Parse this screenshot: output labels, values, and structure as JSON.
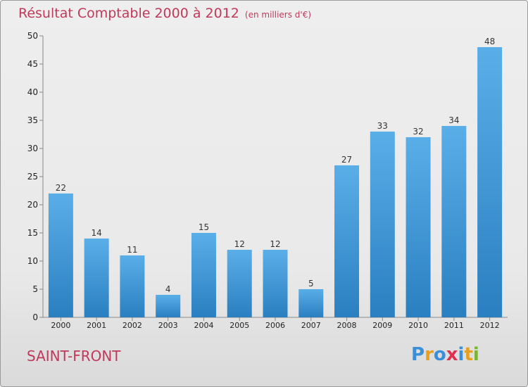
{
  "title": "Résultat Comptable 2000 à 2012",
  "unit": "(en milliers d'€)",
  "commune": "SAINT-FRONT",
  "logo": [
    "P",
    "r",
    "o",
    "x",
    "i",
    "t",
    "i"
  ],
  "logo_colors": [
    "#3a8fd8",
    "#e6a020",
    "#3a8fd8",
    "#e03050",
    "#3a8fd8",
    "#e6a020",
    "#7ab530"
  ],
  "bar_color": "#3d9ad8",
  "chart_data": {
    "type": "bar",
    "title": "Résultat Comptable 2000 à 2012",
    "xlabel": "",
    "ylabel": "",
    "categories": [
      "2000",
      "2001",
      "2002",
      "2003",
      "2004",
      "2005",
      "2006",
      "2007",
      "2008",
      "2009",
      "2010",
      "2011",
      "2012"
    ],
    "values": [
      22,
      14,
      11,
      4,
      15,
      12,
      12,
      5,
      27,
      33,
      32,
      34,
      48
    ],
    "ylim": [
      0,
      50
    ],
    "yticks": [
      0,
      5,
      10,
      15,
      20,
      25,
      30,
      35,
      40,
      45,
      50
    ],
    "grid": false
  }
}
